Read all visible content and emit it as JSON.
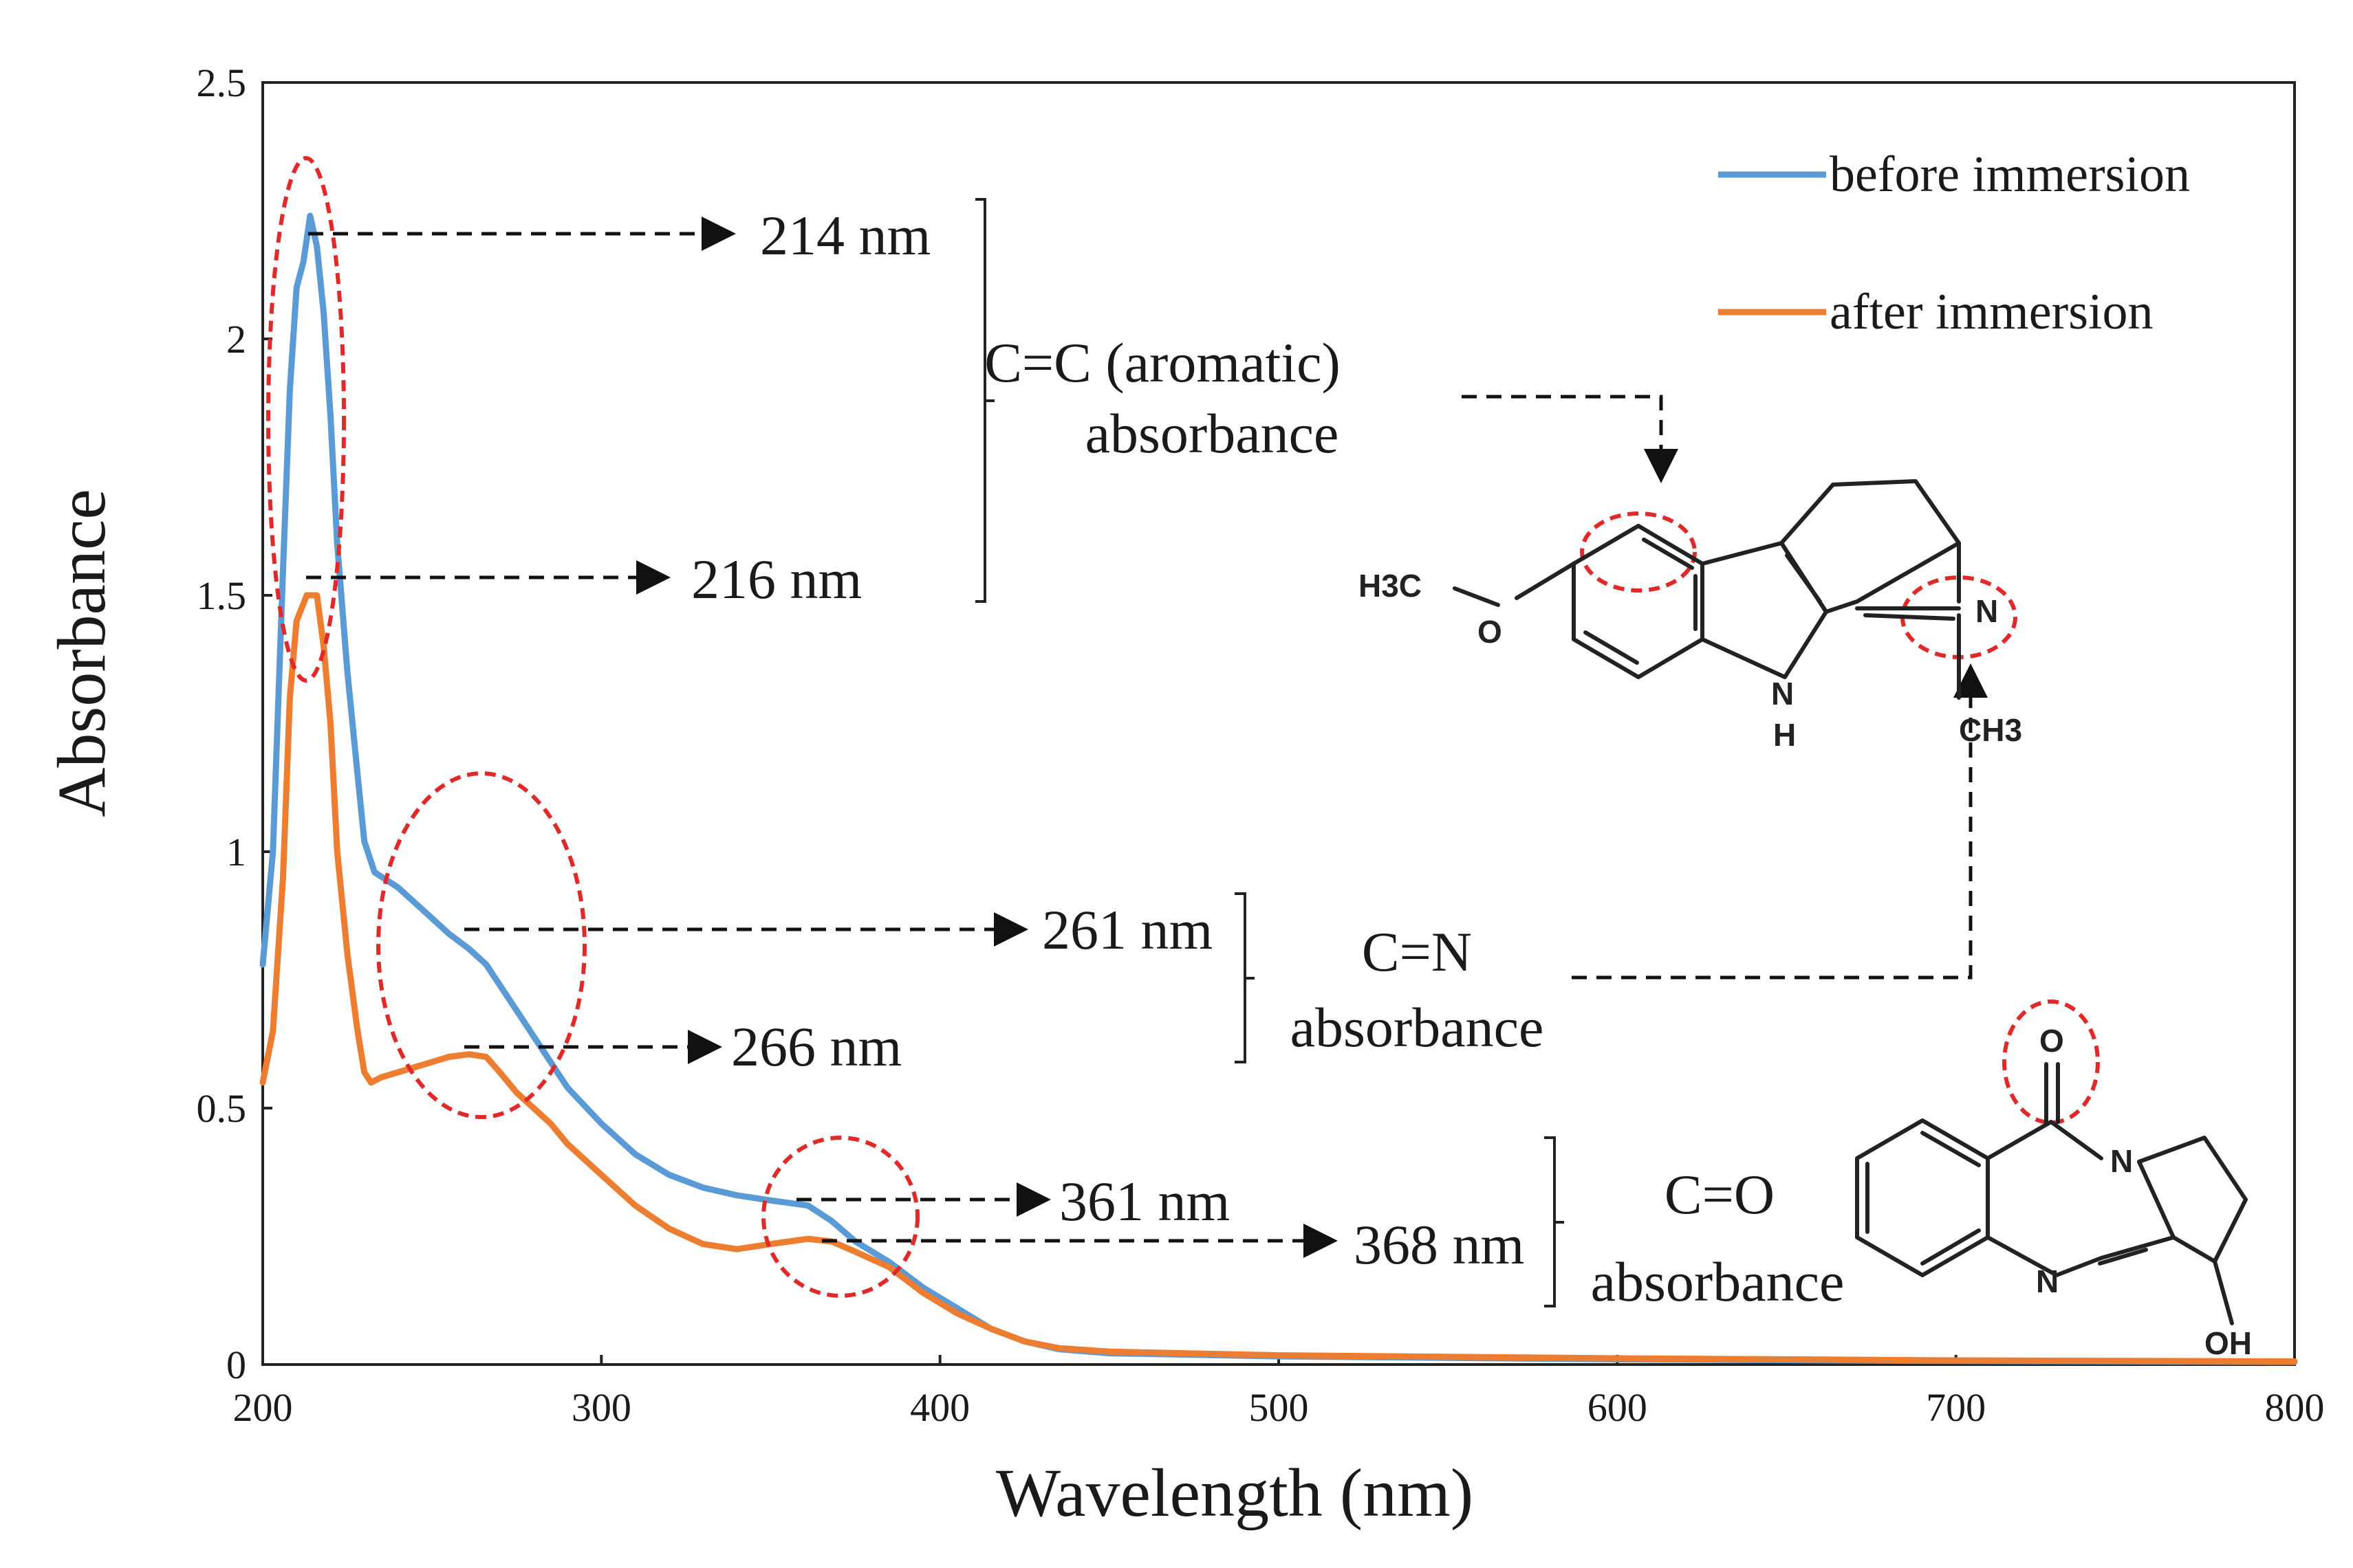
{
  "chart_data": {
    "type": "line",
    "title": "",
    "xlabel": "Wavelength (nm)",
    "ylabel": "Absorbance",
    "xlim": [
      200,
      800
    ],
    "ylim": [
      0,
      2.5
    ],
    "x_ticks": [
      "200",
      "300",
      "400",
      "500",
      "600",
      "700",
      "800"
    ],
    "y_ticks": [
      "0",
      "0.5",
      "1",
      "1.5",
      "2",
      "2.5"
    ],
    "grid": false,
    "legend_position": "top-right",
    "series": [
      {
        "name": "before immersion",
        "color": "#5b9bd5",
        "points": [
          [
            200,
            0.78
          ],
          [
            203,
            1.0
          ],
          [
            206,
            1.55
          ],
          [
            208,
            1.9
          ],
          [
            210,
            2.1
          ],
          [
            212,
            2.15
          ],
          [
            214,
            2.24
          ],
          [
            216,
            2.18
          ],
          [
            218,
            2.05
          ],
          [
            220,
            1.85
          ],
          [
            222,
            1.6
          ],
          [
            225,
            1.35
          ],
          [
            228,
            1.15
          ],
          [
            230,
            1.02
          ],
          [
            233,
            0.96
          ],
          [
            240,
            0.93
          ],
          [
            245,
            0.9
          ],
          [
            250,
            0.87
          ],
          [
            255,
            0.84
          ],
          [
            261,
            0.81
          ],
          [
            266,
            0.78
          ],
          [
            270,
            0.74
          ],
          [
            275,
            0.69
          ],
          [
            280,
            0.64
          ],
          [
            285,
            0.59
          ],
          [
            290,
            0.54
          ],
          [
            300,
            0.47
          ],
          [
            310,
            0.41
          ],
          [
            320,
            0.37
          ],
          [
            330,
            0.345
          ],
          [
            340,
            0.33
          ],
          [
            350,
            0.32
          ],
          [
            361,
            0.31
          ],
          [
            368,
            0.28
          ],
          [
            375,
            0.24
          ],
          [
            385,
            0.2
          ],
          [
            395,
            0.15
          ],
          [
            405,
            0.11
          ],
          [
            415,
            0.07
          ],
          [
            425,
            0.045
          ],
          [
            435,
            0.03
          ],
          [
            450,
            0.022
          ],
          [
            500,
            0.016
          ],
          [
            600,
            0.01
          ],
          [
            700,
            0.007
          ],
          [
            800,
            0.005
          ]
        ]
      },
      {
        "name": "after immersion",
        "color": "#ed7d31",
        "points": [
          [
            200,
            0.55
          ],
          [
            203,
            0.65
          ],
          [
            206,
            0.95
          ],
          [
            208,
            1.3
          ],
          [
            210,
            1.45
          ],
          [
            213,
            1.5
          ],
          [
            216,
            1.5
          ],
          [
            218,
            1.4
          ],
          [
            220,
            1.25
          ],
          [
            222,
            1.0
          ],
          [
            225,
            0.8
          ],
          [
            228,
            0.65
          ],
          [
            230,
            0.57
          ],
          [
            232,
            0.55
          ],
          [
            235,
            0.56
          ],
          [
            240,
            0.57
          ],
          [
            245,
            0.58
          ],
          [
            250,
            0.59
          ],
          [
            255,
            0.6
          ],
          [
            261,
            0.605
          ],
          [
            266,
            0.6
          ],
          [
            270,
            0.57
          ],
          [
            275,
            0.53
          ],
          [
            280,
            0.5
          ],
          [
            285,
            0.47
          ],
          [
            290,
            0.43
          ],
          [
            300,
            0.37
          ],
          [
            310,
            0.31
          ],
          [
            320,
            0.265
          ],
          [
            330,
            0.235
          ],
          [
            340,
            0.225
          ],
          [
            350,
            0.235
          ],
          [
            361,
            0.245
          ],
          [
            368,
            0.24
          ],
          [
            375,
            0.22
          ],
          [
            385,
            0.19
          ],
          [
            395,
            0.14
          ],
          [
            405,
            0.1
          ],
          [
            415,
            0.07
          ],
          [
            425,
            0.045
          ],
          [
            435,
            0.032
          ],
          [
            450,
            0.025
          ],
          [
            500,
            0.018
          ],
          [
            600,
            0.012
          ],
          [
            700,
            0.008
          ],
          [
            800,
            0.006
          ]
        ]
      }
    ],
    "annotations": {
      "peak_214": "214 nm",
      "peak_216": "216 nm",
      "peak_261": "261 nm",
      "peak_266": "266 nm",
      "peak_361": "361 nm",
      "peak_368": "368 nm",
      "cc_line1": "C=C (aromatic)",
      "cc_line2": "absorbance",
      "cn_line1": "C=N",
      "cn_line2": "absorbance",
      "co_line1": "C=O",
      "co_line2": "absorbance"
    },
    "molecules": {
      "harmine": {
        "h3c": "H3C",
        "o": "O",
        "nh_n": "N",
        "nh_h": "H",
        "n": "N",
        "ch3": "CH3"
      },
      "vasicinone": {
        "o": "O",
        "n1": "N",
        "n2": "N",
        "oh": "OH"
      }
    }
  }
}
